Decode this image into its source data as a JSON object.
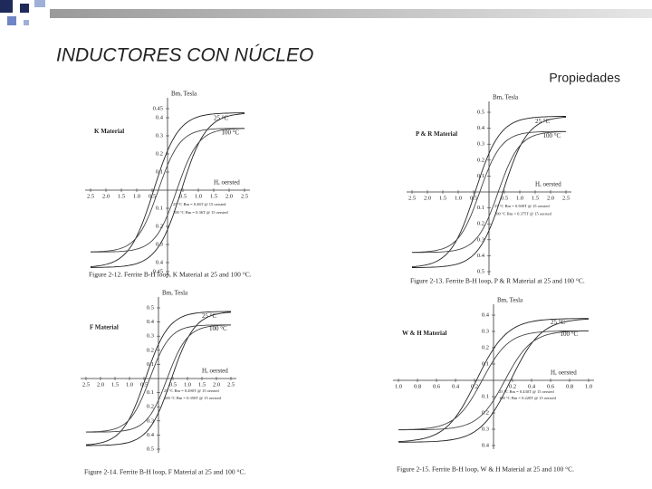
{
  "header": {
    "title": "INDUCTORES CON NÚCLEO",
    "subtitle": "Propiedades"
  },
  "panels": [
    {
      "material": "K Material",
      "y_label": "Bm, Tesla",
      "x_label": "H, oersted",
      "y_up": [
        "0.45",
        "0.4",
        "0.3",
        "0.2",
        "0.1"
      ],
      "y_down": [
        "0.1",
        "0.2",
        "0.3",
        "0.4",
        "0.45"
      ],
      "x_left": [
        "2.5",
        "2.0",
        "1.5",
        "1.0",
        "0.5"
      ],
      "x_right": [
        "0.5",
        "1.0",
        "1.5",
        "2.0",
        "2.5"
      ],
      "curves": [
        "25 °C",
        "100 °C"
      ],
      "notes": [
        "25 °C   Bm = 0.46T @ 15 oersted",
        "100 °C   Bm = 0.36T @ 15 oersted"
      ],
      "caption": "Figure 2-12.  Ferrite B-H loop, K Material at 25 and 100 °C."
    },
    {
      "material": "P & R Material",
      "y_label": "Bm, Tesla",
      "x_label": "H, oersted",
      "y_up": [
        "0.5",
        "0.4",
        "0.3",
        "0.2",
        "0.1"
      ],
      "y_down": [
        "0.1",
        "0.2",
        "0.3",
        "0.4",
        "0.5"
      ],
      "x_left": [
        "2.5",
        "2.0",
        "1.5",
        "1.0",
        "0.5"
      ],
      "x_right": [
        "0.5",
        "1.0",
        "1.5",
        "2.0",
        "2.5"
      ],
      "curves": [
        "25 °C",
        "100 °C"
      ],
      "notes": [
        "25 °C   Bm = 0.500T @ 15 oersted",
        "100 °C   Bm = 0.375T @ 15 oersted"
      ],
      "caption": "Figure 2-13.  Ferrite B-H loop, P & R Material at 25 and 100 °C."
    },
    {
      "material": "F Material",
      "y_label": "Bm, Tesla",
      "x_label": "H, oersted",
      "y_up": [
        "0.5",
        "0.4",
        "0.3",
        "0.2",
        "0.1"
      ],
      "y_down": [
        "0.1",
        "0.2",
        "0.3",
        "0.4",
        "0.5"
      ],
      "x_left": [
        "2.5",
        "2.0",
        "1.5",
        "1.0",
        "0.5"
      ],
      "x_right": [
        "0.5",
        "1.0",
        "1.5",
        "2.0",
        "2.5"
      ],
      "curves": [
        "25 °C",
        "100 °C"
      ],
      "notes": [
        "25 °C   Bm = 0.490T @ 15 oersted",
        "100 °C   Bm = 0.350T @ 15 oersted"
      ],
      "caption": "Figure 2-14.  Ferrite B-H loop, F Material at 25 and 100 °C."
    },
    {
      "material": "W & H Material",
      "y_label": "Bm, Tesla",
      "x_label": "H, oersted",
      "y_up": [
        "0.4",
        "0.3",
        "0.2",
        "0.1"
      ],
      "y_down": [
        "0.1",
        "0.2",
        "0.3",
        "0.4"
      ],
      "x_left": [
        "1.0",
        "0.8",
        "0.6",
        "0.4",
        "0.2"
      ],
      "x_right": [
        "0.2",
        "0.4",
        "0.6",
        "0.8",
        "1.0"
      ],
      "curves": [
        "25 °C",
        "100 °C"
      ],
      "notes": [
        "25 °C   Bm = 0.430T @ 15 oersted",
        "100 °C   Bm = 0.220T @ 15 oersted"
      ],
      "caption": "Figure 2-15.  Ferrite B-H loop, W & H Material at 25 and 100 °C."
    }
  ]
}
